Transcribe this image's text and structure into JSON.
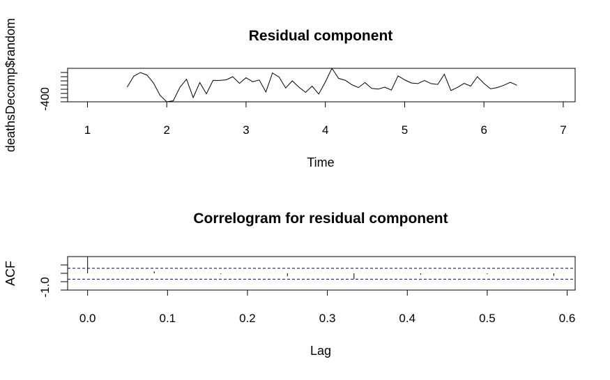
{
  "chart_data": [
    {
      "type": "line",
      "title": "Residual component",
      "xlabel": "Time",
      "ylabel": "deathsDecomp$random",
      "xlim": [
        0.75,
        7.15
      ],
      "ylim": [
        -400,
        1200
      ],
      "x_ticks": [
        1,
        2,
        3,
        4,
        5,
        6,
        7
      ],
      "x_tick_labels": [
        "1",
        "2",
        "3",
        "4",
        "5",
        "6",
        "7"
      ],
      "y_ticks": [
        -400
      ],
      "y_tick_labels": [
        "-400"
      ],
      "y_minor_ticks": [
        -200,
        0,
        200,
        400,
        600,
        800,
        1000
      ],
      "grid": false,
      "series": [
        {
          "x": [
            1.5,
            1.583,
            1.667,
            1.75,
            1.833,
            1.917,
            2.0,
            2.083,
            2.167,
            2.25,
            2.333,
            2.417,
            2.5,
            2.583,
            2.667,
            2.75,
            2.833,
            2.917,
            3.0,
            3.083,
            3.167,
            3.25,
            3.333,
            3.417,
            3.5,
            3.583,
            3.667,
            3.75,
            3.833,
            3.917,
            4.0,
            4.083,
            4.167,
            4.25,
            4.333,
            4.417,
            4.5,
            4.583,
            4.667,
            4.75,
            4.833,
            4.917,
            5.0,
            5.083,
            5.167,
            5.25,
            5.333,
            5.417,
            5.5,
            5.583,
            5.667,
            5.75,
            5.833,
            5.917,
            6.0,
            6.083,
            6.167,
            6.25,
            6.333,
            6.417
          ],
          "values": [
            300,
            820,
            1000,
            880,
            500,
            -100,
            -400,
            -350,
            300,
            680,
            -200,
            520,
            -20,
            620,
            620,
            650,
            800,
            480,
            750,
            560,
            640,
            70,
            980,
            780,
            260,
            600,
            300,
            50,
            350,
            -30,
            550,
            1200,
            720,
            630,
            420,
            280,
            520,
            240,
            210,
            300,
            160,
            840,
            650,
            500,
            470,
            620,
            470,
            430,
            920,
            140,
            290,
            480,
            350,
            800,
            480,
            220,
            280,
            390,
            530,
            390
          ]
        }
      ]
    },
    {
      "type": "bar",
      "title": "Correlogram for residual component",
      "xlabel": "Lag",
      "ylabel": "ACF",
      "xlim": [
        -0.025,
        0.61
      ],
      "ylim": [
        -1.0,
        1.0
      ],
      "x_ticks": [
        0.0,
        0.1,
        0.2,
        0.3,
        0.4,
        0.5,
        0.6
      ],
      "x_tick_labels": [
        "0.0",
        "0.1",
        "0.2",
        "0.3",
        "0.4",
        "0.5",
        "0.6"
      ],
      "y_ticks": [
        -1.0
      ],
      "y_tick_labels": [
        "-1.0"
      ],
      "y_minor_ticks": [
        -0.5,
        0.0,
        0.5
      ],
      "grid": false,
      "lags": [
        0.0,
        0.0833,
        0.1667,
        0.25,
        0.3333,
        0.4167,
        0.5,
        0.5833
      ],
      "values": [
        1.0,
        0.12,
        -0.04,
        -0.18,
        -0.35,
        -0.08,
        -0.05,
        -0.15
      ],
      "confidence_bands": [
        0.3,
        -0.35
      ],
      "band_color": "#00008B"
    }
  ]
}
